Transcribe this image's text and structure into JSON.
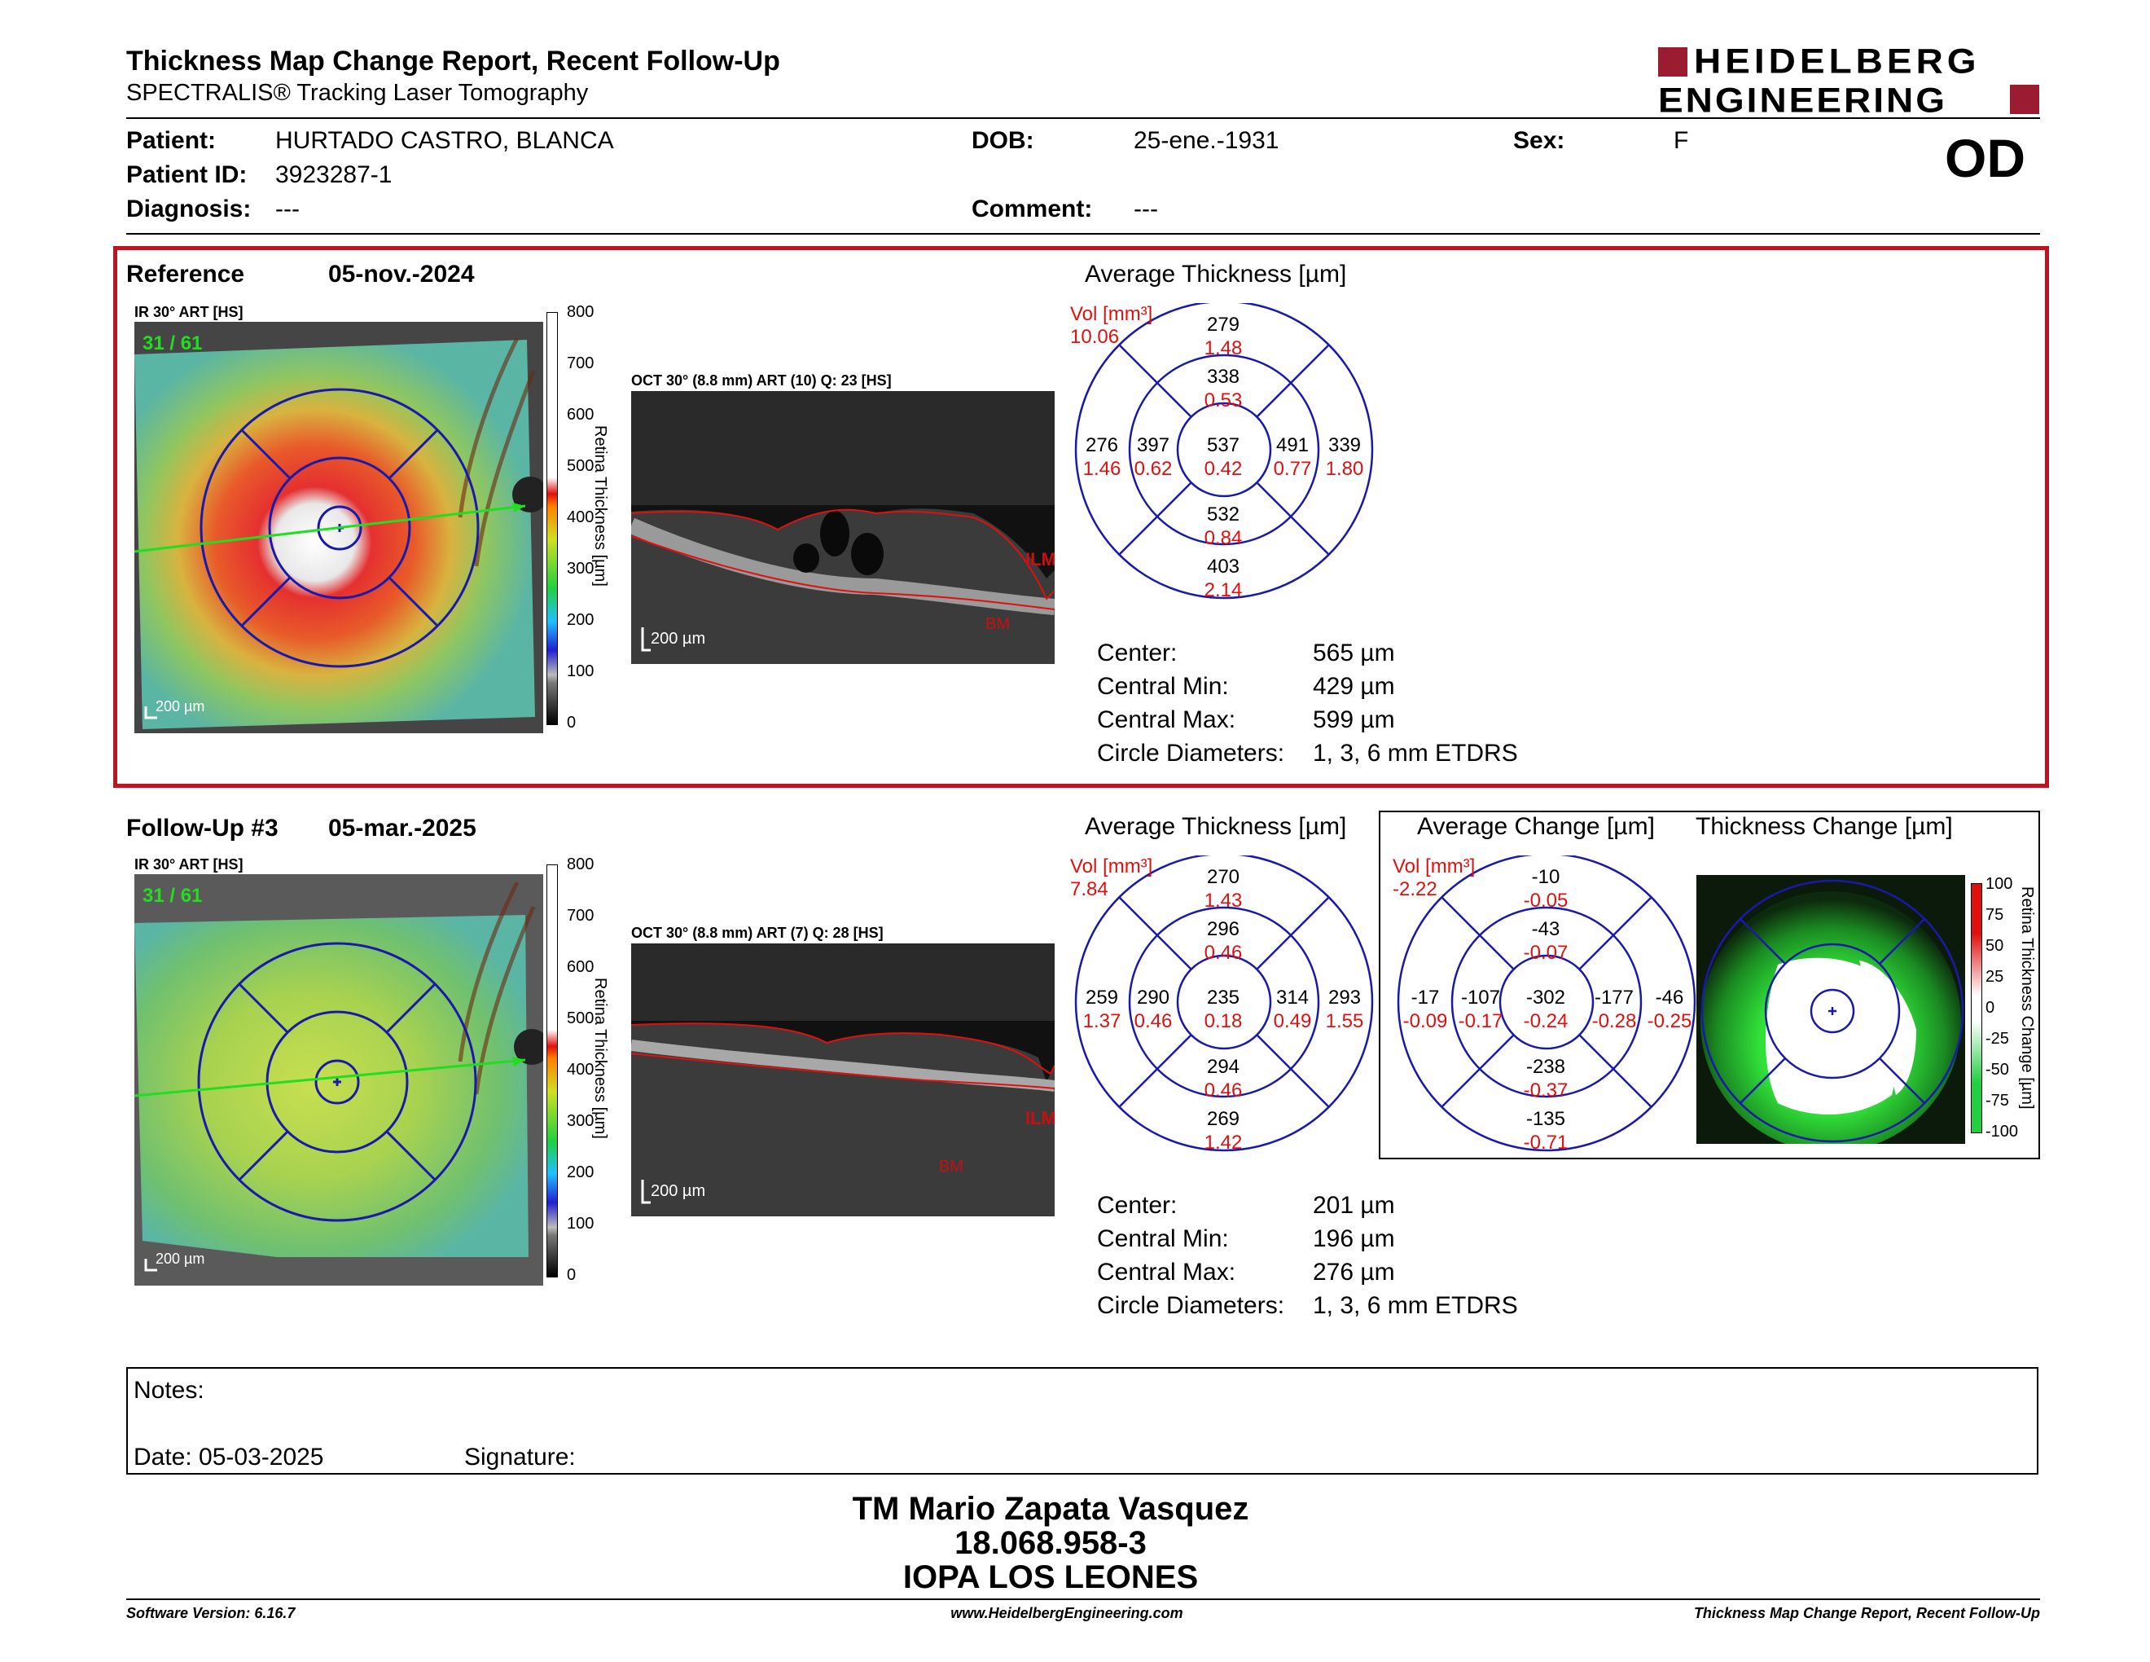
{
  "header": {
    "title": "Thickness Map Change Report, Recent Follow-Up",
    "subtitle": "SPECTRALIS® Tracking Laser Tomography",
    "logo_line1": "HEIDELBERG",
    "logo_line2": "ENGINEERING",
    "eye": "OD"
  },
  "patient": {
    "patient_label": "Patient:",
    "patient_value": "HURTADO CASTRO, BLANCA",
    "id_label": "Patient ID:",
    "id_value": "3923287-1",
    "diagnosis_label": "Diagnosis:",
    "diagnosis_value": "---",
    "dob_label": "DOB:",
    "dob_value": "25-ene.-1931",
    "comment_label": "Comment:",
    "comment_value": "---",
    "sex_label": "Sex:",
    "sex_value": "F"
  },
  "reference": {
    "label": "Reference",
    "date": "05-nov.-2024",
    "ir_label": "IR 30° ART [HS]",
    "ir_counter": "31 / 61",
    "ir_scalebar": "200 µm",
    "oct_label": "OCT 30° (8.8 mm) ART (10) Q: 23 [HS]",
    "oct_scalebar": "200 µm",
    "oct_ilm": "ILM",
    "oct_bm": "BM",
    "colorbar_ticks": [
      "800",
      "700",
      "600",
      "500",
      "400",
      "300",
      "200",
      "100",
      "0"
    ],
    "colorbar_title": "Retina Thickness [µm]",
    "avg_title": "Average Thickness [µm]",
    "vol_label": "Vol [mm³]",
    "vol_value": "10.06",
    "sectors": {
      "outer_top": {
        "t": "279",
        "v": "1.48"
      },
      "inner_top": {
        "t": "338",
        "v": "0.53"
      },
      "outer_left": {
        "t": "276",
        "v": "1.46"
      },
      "inner_left": {
        "t": "397",
        "v": "0.62"
      },
      "center": {
        "t": "537",
        "v": "0.42"
      },
      "inner_right": {
        "t": "491",
        "v": "0.77"
      },
      "outer_right": {
        "t": "339",
        "v": "1.80"
      },
      "inner_bottom": {
        "t": "532",
        "v": "0.84"
      },
      "outer_bottom": {
        "t": "403",
        "v": "2.14"
      }
    },
    "stats": {
      "center_label": "Center:",
      "center_value": "565 µm",
      "min_label": "Central Min:",
      "min_value": "429 µm",
      "max_label": "Central Max:",
      "max_value": "599 µm",
      "diam_label": "Circle Diameters:",
      "diam_value": "1, 3, 6 mm ETDRS"
    }
  },
  "followup": {
    "label": "Follow-Up #3",
    "date": "05-mar.-2025",
    "ir_label": "IR 30° ART [HS]",
    "ir_counter": "31 / 61",
    "ir_scalebar": "200 µm",
    "oct_label": "OCT 30° (8.8 mm) ART (7) Q: 28 [HS]",
    "oct_scalebar": "200 µm",
    "oct_ilm": "ILM",
    "oct_bm": "BM",
    "colorbar_ticks": [
      "800",
      "700",
      "600",
      "500",
      "400",
      "300",
      "200",
      "100",
      "0"
    ],
    "colorbar_title": "Retina Thickness [µm]",
    "avg_title": "Average Thickness [µm]",
    "vol_label": "Vol [mm³]",
    "vol_value": "7.84",
    "sectors": {
      "outer_top": {
        "t": "270",
        "v": "1.43"
      },
      "inner_top": {
        "t": "296",
        "v": "0.46"
      },
      "outer_left": {
        "t": "259",
        "v": "1.37"
      },
      "inner_left": {
        "t": "290",
        "v": "0.46"
      },
      "center": {
        "t": "235",
        "v": "0.18"
      },
      "inner_right": {
        "t": "314",
        "v": "0.49"
      },
      "outer_right": {
        "t": "293",
        "v": "1.55"
      },
      "inner_bottom": {
        "t": "294",
        "v": "0.46"
      },
      "outer_bottom": {
        "t": "269",
        "v": "1.42"
      }
    },
    "stats": {
      "center_label": "Center:",
      "center_value": "201 µm",
      "min_label": "Central Min:",
      "min_value": "196 µm",
      "max_label": "Central Max:",
      "max_value": "276 µm",
      "diam_label": "Circle Diameters:",
      "diam_value": "1, 3, 6 mm ETDRS"
    },
    "change": {
      "avg_title": "Average Change [µm]",
      "map_title": "Thickness Change [µm]",
      "vol_label": "Vol [mm³]",
      "vol_value": "-2.22",
      "sectors": {
        "outer_top": {
          "t": "-10",
          "v": "-0.05"
        },
        "inner_top": {
          "t": "-43",
          "v": "-0.07"
        },
        "outer_left": {
          "t": "-17",
          "v": "-0.09"
        },
        "inner_left": {
          "t": "-107",
          "v": "-0.17"
        },
        "center": {
          "t": "-302",
          "v": "-0.24"
        },
        "inner_right": {
          "t": "-177",
          "v": "-0.28"
        },
        "outer_right": {
          "t": "-46",
          "v": "-0.25"
        },
        "inner_bottom": {
          "t": "-238",
          "v": "-0.37"
        },
        "outer_bottom": {
          "t": "-135",
          "v": "-0.71"
        }
      },
      "colorbar_ticks": [
        "100",
        "75",
        "50",
        "25",
        "0",
        "-25",
        "-50",
        "-75",
        "-100"
      ],
      "colorbar_title": "Retina Thickness Change [µm]"
    }
  },
  "notes": {
    "notes_label": "Notes:",
    "date_label": "Date: 05-03-2025",
    "signature_label": "Signature:"
  },
  "signatory": {
    "name": "TM Mario Zapata Vasquez",
    "rut": "18.068.958-3",
    "institution": "IOPA LOS LEONES"
  },
  "footer": {
    "version": "Software Version: 6.16.7",
    "website": "www.HeidelbergEngineering.com",
    "report": "Thickness Map Change Report, Recent Follow-Up"
  },
  "colors": {
    "etdrs_blue": "#1a1aa8",
    "value_red": "#e01010",
    "frame_red": "#c1121f",
    "logo_red": "#9b1b30"
  }
}
